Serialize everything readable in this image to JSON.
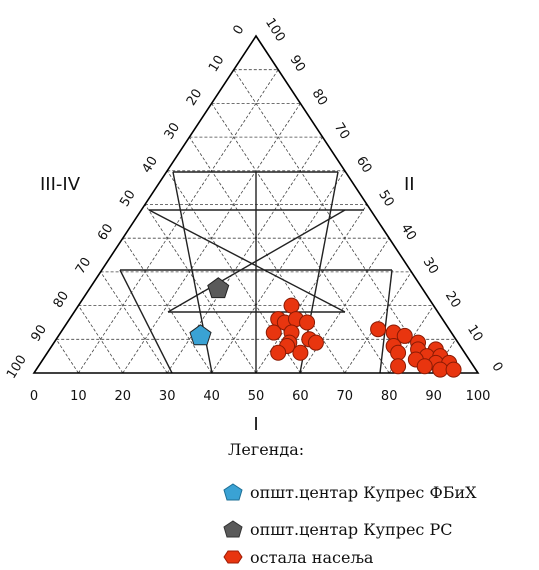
{
  "chart_data": {
    "type": "scatter",
    "subtype": "ternary",
    "corner_labels": {
      "top": "",
      "left": "III-IV",
      "right": "II",
      "bottom": "I"
    },
    "ticks": {
      "bottom": [
        "0",
        "10",
        "20",
        "30",
        "40",
        "50",
        "60",
        "70",
        "80",
        "90",
        "100"
      ],
      "left": [
        "0",
        "10",
        "20",
        "30",
        "40",
        "50",
        "60",
        "70",
        "80",
        "90",
        "100"
      ],
      "right": [
        "100",
        "90",
        "80",
        "70",
        "60",
        "50",
        "40",
        "30",
        "20",
        "10",
        "0"
      ]
    },
    "legend_title": "Легенда:",
    "series": [
      {
        "name": "општ.центар Купрес ФБиХ",
        "marker": "pentagon",
        "color": "#3aa2d4",
        "points": [
          {
            "II": 11,
            "I": 32
          }
        ]
      },
      {
        "name": "општ.центар Купрес РС",
        "marker": "pentagon",
        "color": "#5a5a5a",
        "points": [
          {
            "II": 25,
            "I": 29
          }
        ]
      },
      {
        "name": "остала насеља",
        "marker": "circle",
        "color": "#e8350f",
        "points": [
          {
            "II": 20,
            "I": 48
          },
          {
            "II": 16,
            "I": 47
          },
          {
            "II": 15,
            "I": 49
          },
          {
            "II": 16,
            "I": 51
          },
          {
            "II": 15,
            "I": 54
          },
          {
            "II": 12,
            "I": 48
          },
          {
            "II": 12,
            "I": 52
          },
          {
            "II": 10,
            "I": 57
          },
          {
            "II": 9,
            "I": 59
          },
          {
            "II": 9,
            "I": 53
          },
          {
            "II": 8,
            "I": 53
          },
          {
            "II": 6,
            "I": 57
          },
          {
            "II": 6,
            "I": 52
          },
          {
            "II": 13,
            "I": 71
          },
          {
            "II": 12,
            "I": 75
          },
          {
            "II": 11,
            "I": 78
          },
          {
            "II": 9,
            "I": 82
          },
          {
            "II": 8,
            "I": 77
          },
          {
            "II": 7,
            "I": 83
          },
          {
            "II": 7,
            "I": 87
          },
          {
            "II": 6,
            "I": 79
          },
          {
            "II": 5,
            "I": 86
          },
          {
            "II": 5,
            "I": 89
          },
          {
            "II": 4,
            "I": 84
          },
          {
            "II": 3,
            "I": 89
          },
          {
            "II": 3,
            "I": 92
          },
          {
            "II": 2,
            "I": 87
          },
          {
            "II": 1,
            "I": 91
          },
          {
            "II": 1,
            "I": 94
          },
          {
            "II": 2,
            "I": 81
          }
        ]
      }
    ]
  },
  "legend": {
    "title": "Легенда:",
    "items": [
      {
        "label": "општ.центар Купрес ФБиХ",
        "color": "#3aa2d4",
        "icon": "pentagon-icon"
      },
      {
        "label": "општ.центар Купрес РС",
        "color": "#5a5a5a",
        "icon": "pentagon-icon"
      },
      {
        "label": "остала насеља",
        "color": "#e8350f",
        "icon": "circle-icon"
      }
    ]
  }
}
